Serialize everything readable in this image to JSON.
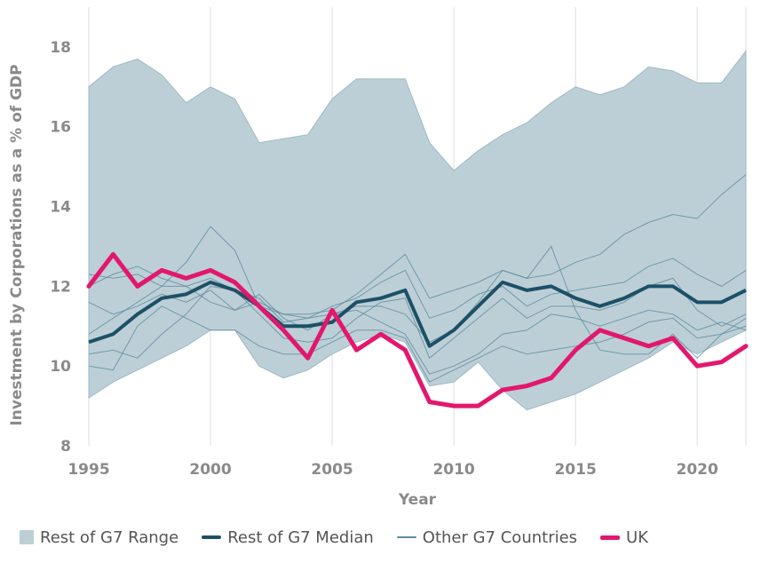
{
  "colors": {
    "range_fill": "#bccfd7",
    "median": "#1d5066",
    "other": "#5f8a9c",
    "uk": "#e2176d",
    "grid": "#d9dee1",
    "tick": "#8a8a8a"
  },
  "chart_data": {
    "type": "line",
    "xlabel": "Year",
    "ylabel": "Investment by Corporations as a % of GDP",
    "xlim": [
      1995,
      2022
    ],
    "ylim": [
      8,
      19
    ],
    "x_ticks": [
      1995,
      2000,
      2005,
      2010,
      2015,
      2020
    ],
    "y_ticks": [
      8,
      10,
      12,
      14,
      16,
      18
    ],
    "x_tick_labels": [
      "1995",
      "2000",
      "2005",
      "2010",
      "2015",
      "2020"
    ],
    "y_tick_labels": [
      "8",
      "10",
      "12",
      "14",
      "16",
      "18"
    ],
    "grid": "vertical",
    "legend_position": "bottom",
    "x": [
      1995,
      1996,
      1997,
      1998,
      1999,
      2000,
      2001,
      2002,
      2003,
      2004,
      2005,
      2006,
      2007,
      2008,
      2009,
      2010,
      2011,
      2012,
      2013,
      2014,
      2015,
      2016,
      2017,
      2018,
      2019,
      2020,
      2021,
      2022
    ],
    "range": {
      "name": "Rest of G7 Range",
      "upper": [
        17.0,
        17.5,
        17.7,
        17.3,
        16.6,
        17.0,
        16.7,
        15.6,
        15.7,
        15.8,
        16.7,
        17.2,
        17.2,
        17.2,
        15.6,
        14.9,
        15.4,
        15.8,
        16.1,
        16.6,
        17.0,
        16.8,
        17.0,
        17.5,
        17.4,
        17.1,
        17.1,
        17.9
      ],
      "lower": [
        9.2,
        9.6,
        9.9,
        10.2,
        10.5,
        10.9,
        10.9,
        10.0,
        9.7,
        9.9,
        10.3,
        10.6,
        10.8,
        10.6,
        9.5,
        9.6,
        10.1,
        9.4,
        8.9,
        9.1,
        9.3,
        9.6,
        9.9,
        10.2,
        10.6,
        10.3,
        10.6,
        10.9
      ]
    },
    "median": {
      "name": "Rest of G7 Median",
      "values": [
        10.6,
        10.8,
        11.3,
        11.7,
        11.8,
        12.1,
        11.9,
        11.5,
        11.0,
        11.0,
        11.1,
        11.6,
        11.7,
        11.9,
        10.5,
        10.9,
        11.5,
        12.1,
        11.9,
        12.0,
        11.7,
        11.5,
        11.7,
        12.0,
        12.0,
        11.6,
        11.6,
        11.9
      ]
    },
    "other_countries": {
      "name": "Other G7 Countries",
      "series": [
        [
          10.8,
          11.2,
          11.6,
          12.0,
          12.6,
          13.5,
          12.9,
          11.5,
          11.3,
          11.3,
          11.4,
          11.8,
          12.3,
          12.8,
          11.7,
          11.9,
          12.1,
          12.4,
          12.2,
          12.3,
          12.6,
          12.8,
          13.3,
          13.6,
          13.8,
          13.7,
          14.3,
          14.8
        ],
        [
          12.3,
          12.2,
          12.3,
          12.0,
          12.0,
          12.2,
          11.9,
          11.7,
          11.1,
          11.2,
          11.5,
          11.7,
          12.1,
          12.4,
          11.2,
          11.4,
          11.8,
          12.0,
          11.5,
          11.8,
          11.9,
          12.0,
          12.1,
          12.5,
          12.7,
          12.3,
          12.0,
          12.4
        ],
        [
          10.3,
          10.4,
          10.2,
          10.8,
          11.3,
          12.0,
          11.9,
          11.3,
          10.7,
          10.6,
          10.7,
          11.2,
          11.6,
          11.7,
          10.2,
          10.7,
          11.2,
          11.7,
          11.2,
          11.5,
          11.5,
          11.4,
          11.6,
          12.0,
          12.2,
          11.4,
          11.0,
          11.3
        ],
        [
          10.0,
          9.9,
          11.0,
          11.5,
          11.2,
          10.9,
          10.9,
          10.5,
          10.3,
          10.3,
          10.6,
          10.9,
          10.9,
          10.7,
          9.6,
          9.9,
          10.2,
          10.5,
          10.3,
          10.4,
          10.5,
          10.6,
          10.8,
          11.1,
          11.2,
          10.7,
          10.8,
          11.0
        ],
        [
          11.6,
          11.3,
          11.5,
          11.8,
          11.6,
          11.9,
          11.4,
          11.8,
          11.2,
          10.9,
          11.3,
          11.4,
          11.1,
          10.8,
          9.8,
          10.0,
          10.3,
          10.8,
          10.9,
          11.3,
          11.2,
          11.0,
          11.2,
          11.4,
          11.3,
          10.9,
          11.1,
          10.9
        ],
        [
          12.0,
          12.3,
          12.5,
          12.2,
          12.0,
          11.6,
          11.4,
          11.6,
          11.3,
          11.2,
          11.3,
          11.5,
          11.5,
          11.3,
          10.6,
          10.9,
          11.6,
          12.4,
          12.2,
          13.0,
          11.4,
          10.4,
          10.3,
          10.3,
          10.8,
          10.2,
          10.8,
          11.2
        ]
      ]
    },
    "uk": {
      "name": "UK",
      "values": [
        12.0,
        12.8,
        12.0,
        12.4,
        12.2,
        12.4,
        12.1,
        11.5,
        10.9,
        10.2,
        11.4,
        10.4,
        10.8,
        10.4,
        9.1,
        9.0,
        9.0,
        9.4,
        9.5,
        9.7,
        10.4,
        10.9,
        10.7,
        10.5,
        10.7,
        10.0,
        10.1,
        10.5
      ]
    },
    "legend": [
      "Rest of G7 Range",
      "Rest of G7 Median",
      "Other G7 Countries",
      "UK"
    ]
  }
}
